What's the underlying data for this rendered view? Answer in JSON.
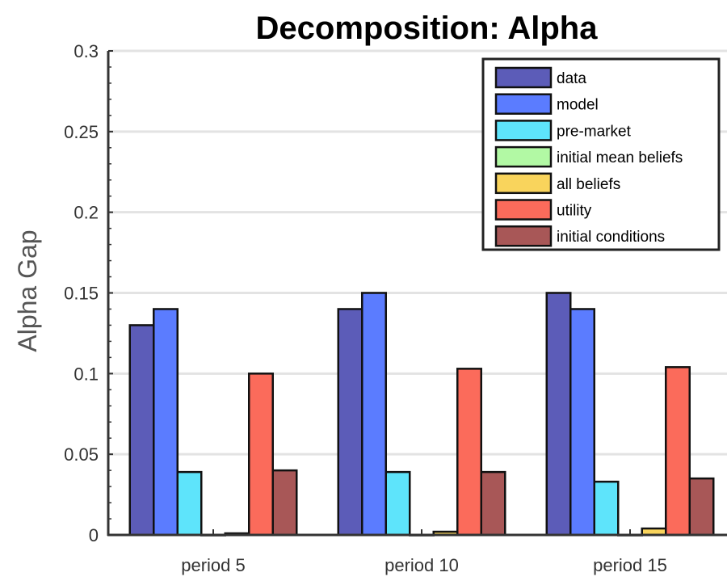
{
  "chart_data": {
    "type": "bar",
    "title": "Decomposition: Alpha",
    "xlabel": "",
    "ylabel": "Alpha Gap",
    "ylim": [
      0,
      0.3
    ],
    "yticks": [
      "0",
      "0.05",
      "0.1",
      "0.15",
      "0.2",
      "0.25",
      "0.3"
    ],
    "grid": true,
    "legend_position": "top-right",
    "categories": [
      "period 5",
      "period 10",
      "period 15"
    ],
    "series": [
      {
        "name": "data",
        "color": "#5c5cb8",
        "values": [
          0.13,
          0.14,
          0.15
        ]
      },
      {
        "name": "model",
        "color": "#5b7cff",
        "values": [
          0.14,
          0.15,
          0.14
        ]
      },
      {
        "name": "pre-market",
        "color": "#5ee4fb",
        "values": [
          0.039,
          0.039,
          0.033
        ]
      },
      {
        "name": "initial mean beliefs",
        "color": "#b2f9a4",
        "values": [
          0.0,
          0.0,
          0.0
        ]
      },
      {
        "name": "all beliefs",
        "color": "#f9d45c",
        "values": [
          0.001,
          0.002,
          0.004
        ]
      },
      {
        "name": "utility",
        "color": "#fb6b5b",
        "values": [
          0.1,
          0.103,
          0.104
        ]
      },
      {
        "name": "initial conditions",
        "color": "#a85757",
        "values": [
          0.04,
          0.039,
          0.035
        ]
      }
    ]
  }
}
